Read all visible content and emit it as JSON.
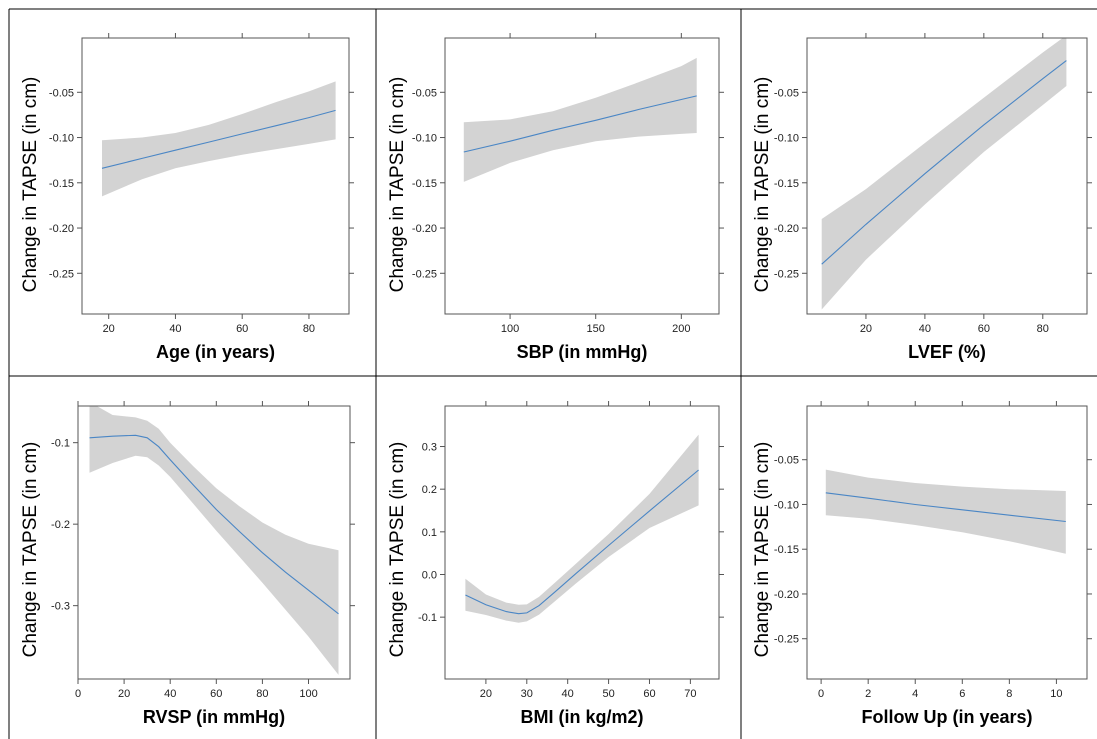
{
  "chart_data": [
    {
      "type": "line",
      "ylabel": "Change in TAPSE (in cm)",
      "xlabel": "Age (in years)",
      "xlim": [
        12,
        92
      ],
      "ylim": [
        -0.295,
        0.01
      ],
      "xticks": [
        20,
        40,
        60,
        80
      ],
      "yticks": [
        -0.25,
        -0.2,
        -0.15,
        -0.1,
        -0.05
      ],
      "ytick_labels": [
        "-0.25",
        "-0.20",
        "-0.15",
        "-0.10",
        "-0.05"
      ],
      "series": [
        {
          "x": [
            18,
            30,
            40,
            50,
            60,
            70,
            80,
            88
          ],
          "y": [
            -0.134,
            -0.123,
            -0.114,
            -0.105,
            -0.096,
            -0.087,
            -0.078,
            -0.07
          ],
          "lower": [
            -0.165,
            -0.146,
            -0.134,
            -0.126,
            -0.119,
            -0.113,
            -0.107,
            -0.102
          ],
          "upper": [
            -0.103,
            -0.1,
            -0.095,
            -0.086,
            -0.074,
            -0.061,
            -0.049,
            -0.038
          ]
        }
      ]
    },
    {
      "type": "line",
      "ylabel": "Change in TAPSE (in cm)",
      "xlabel": "SBP (in mmHg)",
      "xlim": [
        62,
        222
      ],
      "ylim": [
        -0.295,
        0.01
      ],
      "xticks": [
        100,
        150,
        200
      ],
      "yticks": [
        -0.25,
        -0.2,
        -0.15,
        -0.1,
        -0.05
      ],
      "ytick_labels": [
        "-0.25",
        "-0.20",
        "-0.15",
        "-0.10",
        "-0.05"
      ],
      "series": [
        {
          "x": [
            73,
            100,
            125,
            150,
            175,
            200,
            209
          ],
          "y": [
            -0.116,
            -0.104,
            -0.092,
            -0.081,
            -0.069,
            -0.058,
            -0.054
          ],
          "lower": [
            -0.149,
            -0.128,
            -0.114,
            -0.104,
            -0.099,
            -0.096,
            -0.095
          ],
          "upper": [
            -0.083,
            -0.08,
            -0.071,
            -0.056,
            -0.039,
            -0.021,
            -0.012
          ]
        }
      ]
    },
    {
      "type": "line",
      "ylabel": "Change in TAPSE (in cm)",
      "xlabel": "LVEF (%)",
      "xlim": [
        0,
        95
      ],
      "ylim": [
        -0.295,
        0.01
      ],
      "xticks": [
        20,
        40,
        60,
        80
      ],
      "yticks": [
        -0.25,
        -0.2,
        -0.15,
        -0.1,
        -0.05
      ],
      "ytick_labels": [
        "-0.25",
        "-0.20",
        "-0.15",
        "-0.10",
        "-0.05"
      ],
      "series": [
        {
          "x": [
            5,
            20,
            40,
            60,
            80,
            88
          ],
          "y": [
            -0.24,
            -0.196,
            -0.14,
            -0.086,
            -0.035,
            -0.015
          ],
          "lower": [
            -0.29,
            -0.235,
            -0.174,
            -0.116,
            -0.064,
            -0.043
          ],
          "upper": [
            -0.19,
            -0.157,
            -0.106,
            -0.056,
            -0.006,
            0.013
          ]
        }
      ]
    },
    {
      "type": "line",
      "ylabel": "Change in TAPSE (in cm)",
      "xlabel": "RVSP (in mmHg)",
      "xlim": [
        0,
        118
      ],
      "ylim": [
        -0.39,
        -0.055
      ],
      "xticks": [
        0,
        20,
        40,
        60,
        80,
        100
      ],
      "yticks": [
        -0.3,
        -0.2,
        -0.1
      ],
      "ytick_labels": [
        "-0.3",
        "-0.2",
        "-0.1"
      ],
      "series": [
        {
          "x": [
            5,
            15,
            25,
            30,
            35,
            40,
            50,
            60,
            70,
            80,
            90,
            100,
            113
          ],
          "y": [
            -0.094,
            -0.092,
            -0.091,
            -0.094,
            -0.105,
            -0.121,
            -0.152,
            -0.182,
            -0.209,
            -0.235,
            -0.259,
            -0.281,
            -0.31
          ],
          "lower": [
            -0.137,
            -0.125,
            -0.116,
            -0.118,
            -0.128,
            -0.142,
            -0.175,
            -0.208,
            -0.24,
            -0.272,
            -0.305,
            -0.338,
            -0.385
          ],
          "upper": [
            -0.05,
            -0.066,
            -0.069,
            -0.073,
            -0.083,
            -0.1,
            -0.129,
            -0.156,
            -0.178,
            -0.198,
            -0.213,
            -0.224,
            -0.232
          ]
        }
      ]
    },
    {
      "type": "line",
      "ylabel": "Change in TAPSE (in cm)",
      "xlabel": "BMI (in kg/m2)",
      "xlim": [
        10,
        77
      ],
      "ylim": [
        -0.245,
        0.395
      ],
      "xticks": [
        20,
        30,
        40,
        50,
        60,
        70
      ],
      "yticks": [
        -0.1,
        0.0,
        0.1,
        0.2,
        0.3
      ],
      "ytick_labels": [
        "-0.1",
        "0.0",
        "0.1",
        "0.2",
        "0.3"
      ],
      "series": [
        {
          "x": [
            15,
            20,
            25,
            28,
            30,
            33,
            37,
            42,
            50,
            60,
            72
          ],
          "y": [
            -0.048,
            -0.071,
            -0.087,
            -0.092,
            -0.09,
            -0.073,
            -0.04,
            0.002,
            0.068,
            0.149,
            0.245
          ],
          "lower": [
            -0.085,
            -0.095,
            -0.108,
            -0.113,
            -0.11,
            -0.094,
            -0.062,
            -0.021,
            0.041,
            0.109,
            0.162
          ],
          "upper": [
            -0.01,
            -0.047,
            -0.066,
            -0.071,
            -0.07,
            -0.052,
            -0.018,
            0.025,
            0.095,
            0.189,
            0.328
          ]
        }
      ]
    },
    {
      "type": "line",
      "ylabel": "Change in TAPSE (in cm)",
      "xlabel": "Follow Up (in years)",
      "xlim": [
        -0.6,
        11.3
      ],
      "ylim": [
        -0.295,
        0.01
      ],
      "xticks": [
        0,
        2,
        4,
        6,
        8,
        10
      ],
      "yticks": [
        -0.25,
        -0.2,
        -0.15,
        -0.1,
        -0.05
      ],
      "ytick_labels": [
        "-0.25",
        "-0.20",
        "-0.15",
        "-0.10",
        "-0.05"
      ],
      "series": [
        {
          "x": [
            0.2,
            2,
            4,
            6,
            8,
            10.4
          ],
          "y": [
            -0.087,
            -0.093,
            -0.1,
            -0.106,
            -0.112,
            -0.119
          ],
          "lower": [
            -0.112,
            -0.116,
            -0.123,
            -0.131,
            -0.141,
            -0.155
          ],
          "upper": [
            -0.061,
            -0.07,
            -0.076,
            -0.08,
            -0.083,
            -0.085
          ]
        }
      ]
    }
  ]
}
